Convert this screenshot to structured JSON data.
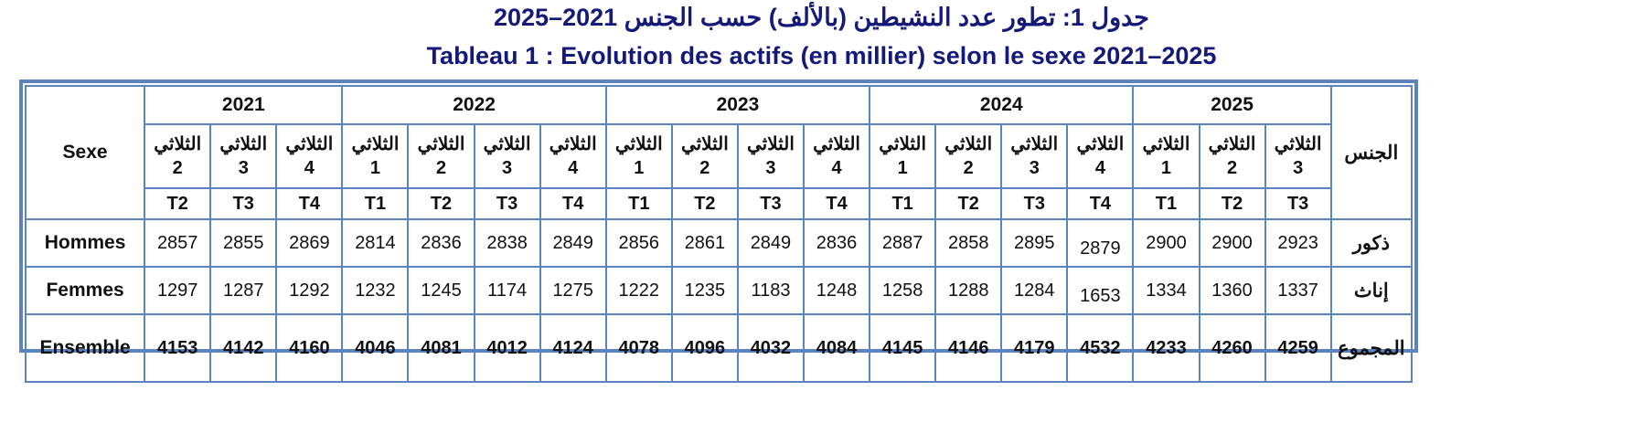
{
  "title_ar": "جدول 1: تطور عدد النشيطين (بالألف) حسب الجنس 2021–2025",
  "title_fr": "Tableau 1 : Evolution des actifs (en millier) selon le sexe 2021–2025",
  "header": {
    "sexe_fr": "Sexe",
    "sexe_ar": "الجنس",
    "years": [
      {
        "year": "2021",
        "span": 3
      },
      {
        "year": "2022",
        "span": 4
      },
      {
        "year": "2023",
        "span": 4
      },
      {
        "year": "2024",
        "span": 4
      },
      {
        "year": "2025",
        "span": 3
      }
    ],
    "quarter_word": "الثلاثي",
    "quarters_num": [
      "2",
      "3",
      "4",
      "1",
      "2",
      "3",
      "4",
      "1",
      "2",
      "3",
      "4",
      "1",
      "2",
      "3",
      "4",
      "1",
      "2",
      "3"
    ],
    "quarters_code": [
      "T2",
      "T3",
      "T4",
      "T1",
      "T2",
      "T3",
      "T4",
      "T1",
      "T2",
      "T3",
      "T4",
      "T1",
      "T2",
      "T3",
      "T4",
      "T1",
      "T2",
      "T3"
    ]
  },
  "rows": [
    {
      "label_fr": "Hommes",
      "label_ar": "ذكور",
      "values": [
        "2857",
        "2855",
        "2869",
        "2814",
        "2836",
        "2838",
        "2849",
        "2856",
        "2861",
        "2849",
        "2836",
        "2887",
        "2858",
        "2895",
        "2879",
        "2900",
        "2900",
        "2923"
      ]
    },
    {
      "label_fr": "Femmes",
      "label_ar": "إناث",
      "values": [
        "1297",
        "1287",
        "1292",
        "1232",
        "1245",
        "1174",
        "1275",
        "1222",
        "1235",
        "1183",
        "1248",
        "1258",
        "1288",
        "1284",
        "1653",
        "1334",
        "1360",
        "1337"
      ]
    },
    {
      "label_fr": "Ensemble",
      "label_ar": "المجموع",
      "values": [
        "4153",
        "4142",
        "4160",
        "4046",
        "4081",
        "4012",
        "4124",
        "4078",
        "4096",
        "4032",
        "4084",
        "4145",
        "4146",
        "4179",
        "4532",
        "4233",
        "4260",
        "4259"
      ]
    }
  ],
  "colors": {
    "title": "#14197a",
    "border": "#5b84bf"
  }
}
